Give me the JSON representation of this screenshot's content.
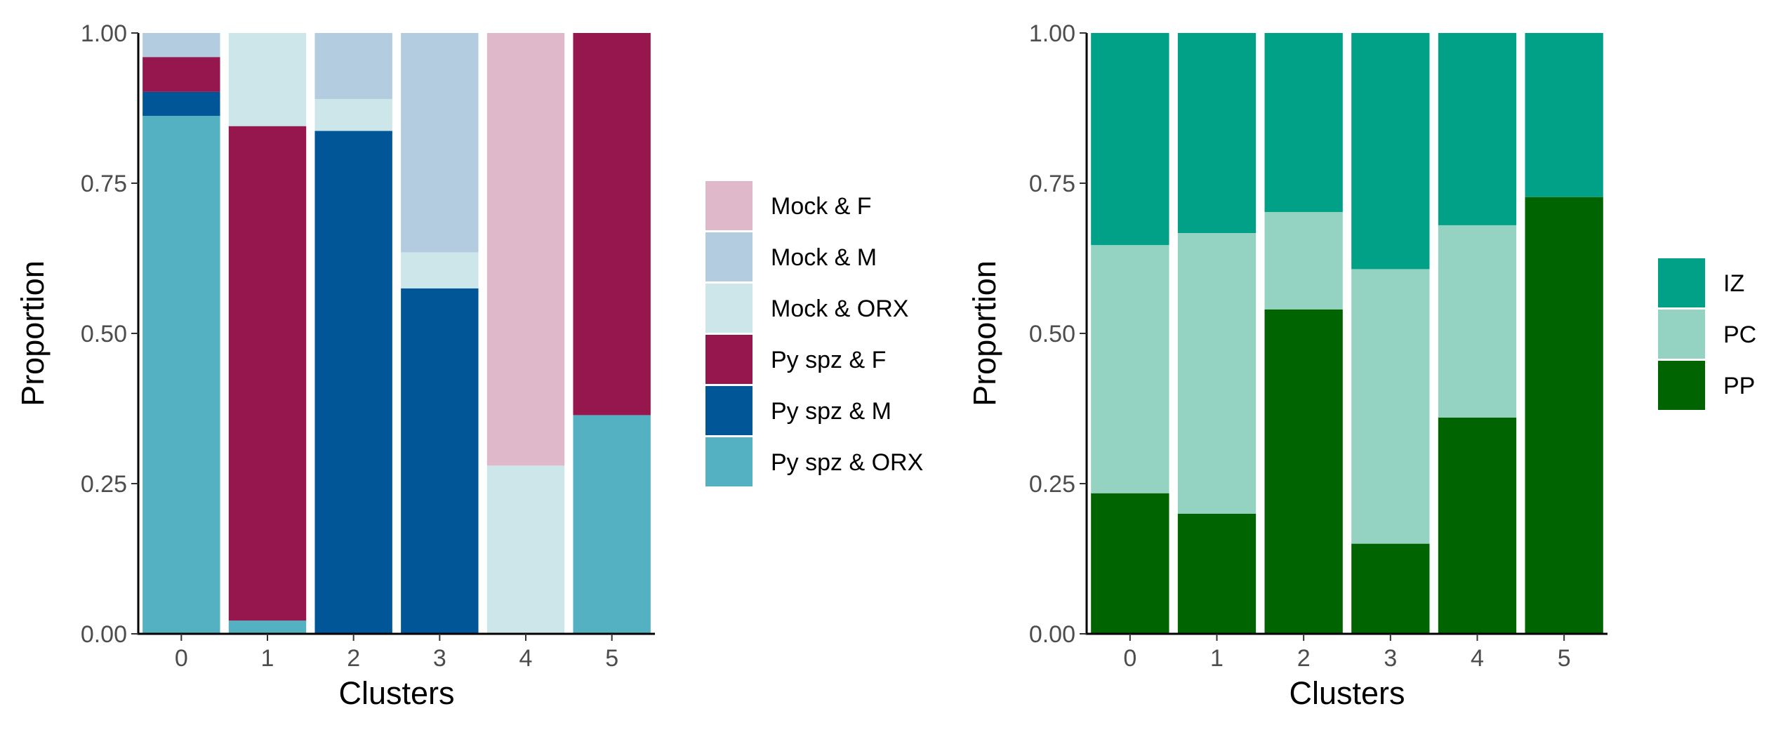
{
  "chart_data": [
    {
      "type": "bar",
      "stacked": true,
      "categories": [
        "0",
        "1",
        "2",
        "3",
        "4",
        "5"
      ],
      "xlabel": "Clusters",
      "ylabel": "Proportion",
      "ylim": [
        0,
        1
      ],
      "yticks": [
        "0.00",
        "0.25",
        "0.50",
        "0.75",
        "1.00"
      ],
      "grid": false,
      "legend_position": "right",
      "series": [
        {
          "name": "Mock & F",
          "color": "#DFB8C9",
          "values": [
            0.0,
            0.0,
            0.0,
            0.0,
            0.72,
            0.0
          ]
        },
        {
          "name": "Mock & M",
          "color": "#B3CCE0",
          "values": [
            0.04,
            0.0,
            0.11,
            0.365,
            0.0,
            0.0
          ]
        },
        {
          "name": "Mock & ORX",
          "color": "#CDE6EA",
          "values": [
            0.0,
            0.155,
            0.053,
            0.06,
            0.28,
            0.0
          ]
        },
        {
          "name": "Py spz & F",
          "color": "#95174E",
          "values": [
            0.058,
            0.823,
            0.0,
            0.0,
            0.0,
            0.636
          ]
        },
        {
          "name": "Py spz & M",
          "color": "#015697",
          "values": [
            0.04,
            0.0,
            0.837,
            0.575,
            0.0,
            0.0
          ]
        },
        {
          "name": "Py spz & ORX",
          "color": "#53B1C1",
          "values": [
            0.862,
            0.022,
            0.0,
            0.0,
            0.0,
            0.364
          ]
        }
      ]
    },
    {
      "type": "bar",
      "stacked": true,
      "categories": [
        "0",
        "1",
        "2",
        "3",
        "4",
        "5"
      ],
      "xlabel": "Clusters",
      "ylabel": "Proportion",
      "ylim": [
        0,
        1
      ],
      "yticks": [
        "0.00",
        "0.25",
        "0.50",
        "0.75",
        "1.00"
      ],
      "grid": false,
      "legend_position": "right",
      "series": [
        {
          "name": "IZ",
          "color": "#00A187",
          "values": [
            0.353,
            0.333,
            0.298,
            0.393,
            0.32,
            0.273
          ]
        },
        {
          "name": "PC",
          "color": "#94D3C1",
          "values": [
            0.413,
            0.467,
            0.162,
            0.457,
            0.32,
            0.0
          ]
        },
        {
          "name": "PP",
          "color": "#006400",
          "values": [
            0.234,
            0.2,
            0.54,
            0.15,
            0.36,
            0.727
          ]
        }
      ]
    }
  ]
}
